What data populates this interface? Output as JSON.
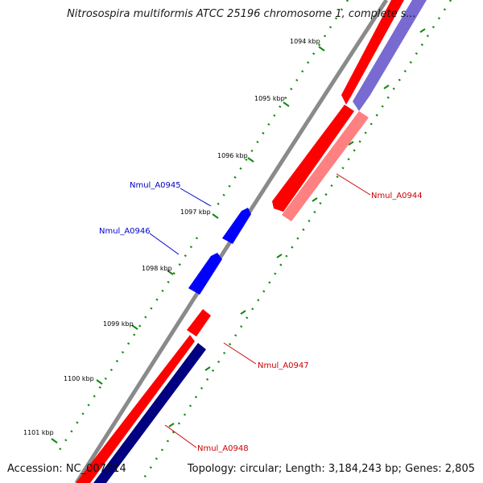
{
  "title": "Nitrosospira multiformis ATCC 25196 chromosome 1, complete s...",
  "footer": {
    "accession": "Accession: NC_007614",
    "summary": "Topology: circular; Length: 3,184,243 bp; Genes: 2,805"
  },
  "colors": {
    "backbone": "#8a8a8a",
    "tick": "#118811",
    "forward_gene": "#ff0000",
    "forward_gene_light": "#ff8080",
    "reverse_gene": "#0000ff",
    "dark_gene": "#000080",
    "lavender_gene": "#6a5acd",
    "blue_label": "#0000cc",
    "red_label": "#cc0000"
  },
  "ticks": [
    {
      "label": "1094 kbp"
    },
    {
      "label": "1095 kbp"
    },
    {
      "label": "1096 kbp"
    },
    {
      "label": "1097 kbp"
    },
    {
      "label": "1098 kbp"
    },
    {
      "label": "1099 kbp"
    },
    {
      "label": "1100 kbp"
    },
    {
      "label": "1101 kbp"
    }
  ],
  "genes": [
    {
      "name": "Nmul_A0945",
      "color": "blue"
    },
    {
      "name": "Nmul_A0946",
      "color": "blue"
    },
    {
      "name": "Nmul_A0944",
      "color": "red"
    },
    {
      "name": "Nmul_A0947",
      "color": "red"
    },
    {
      "name": "Nmul_A0948",
      "color": "red"
    }
  ]
}
